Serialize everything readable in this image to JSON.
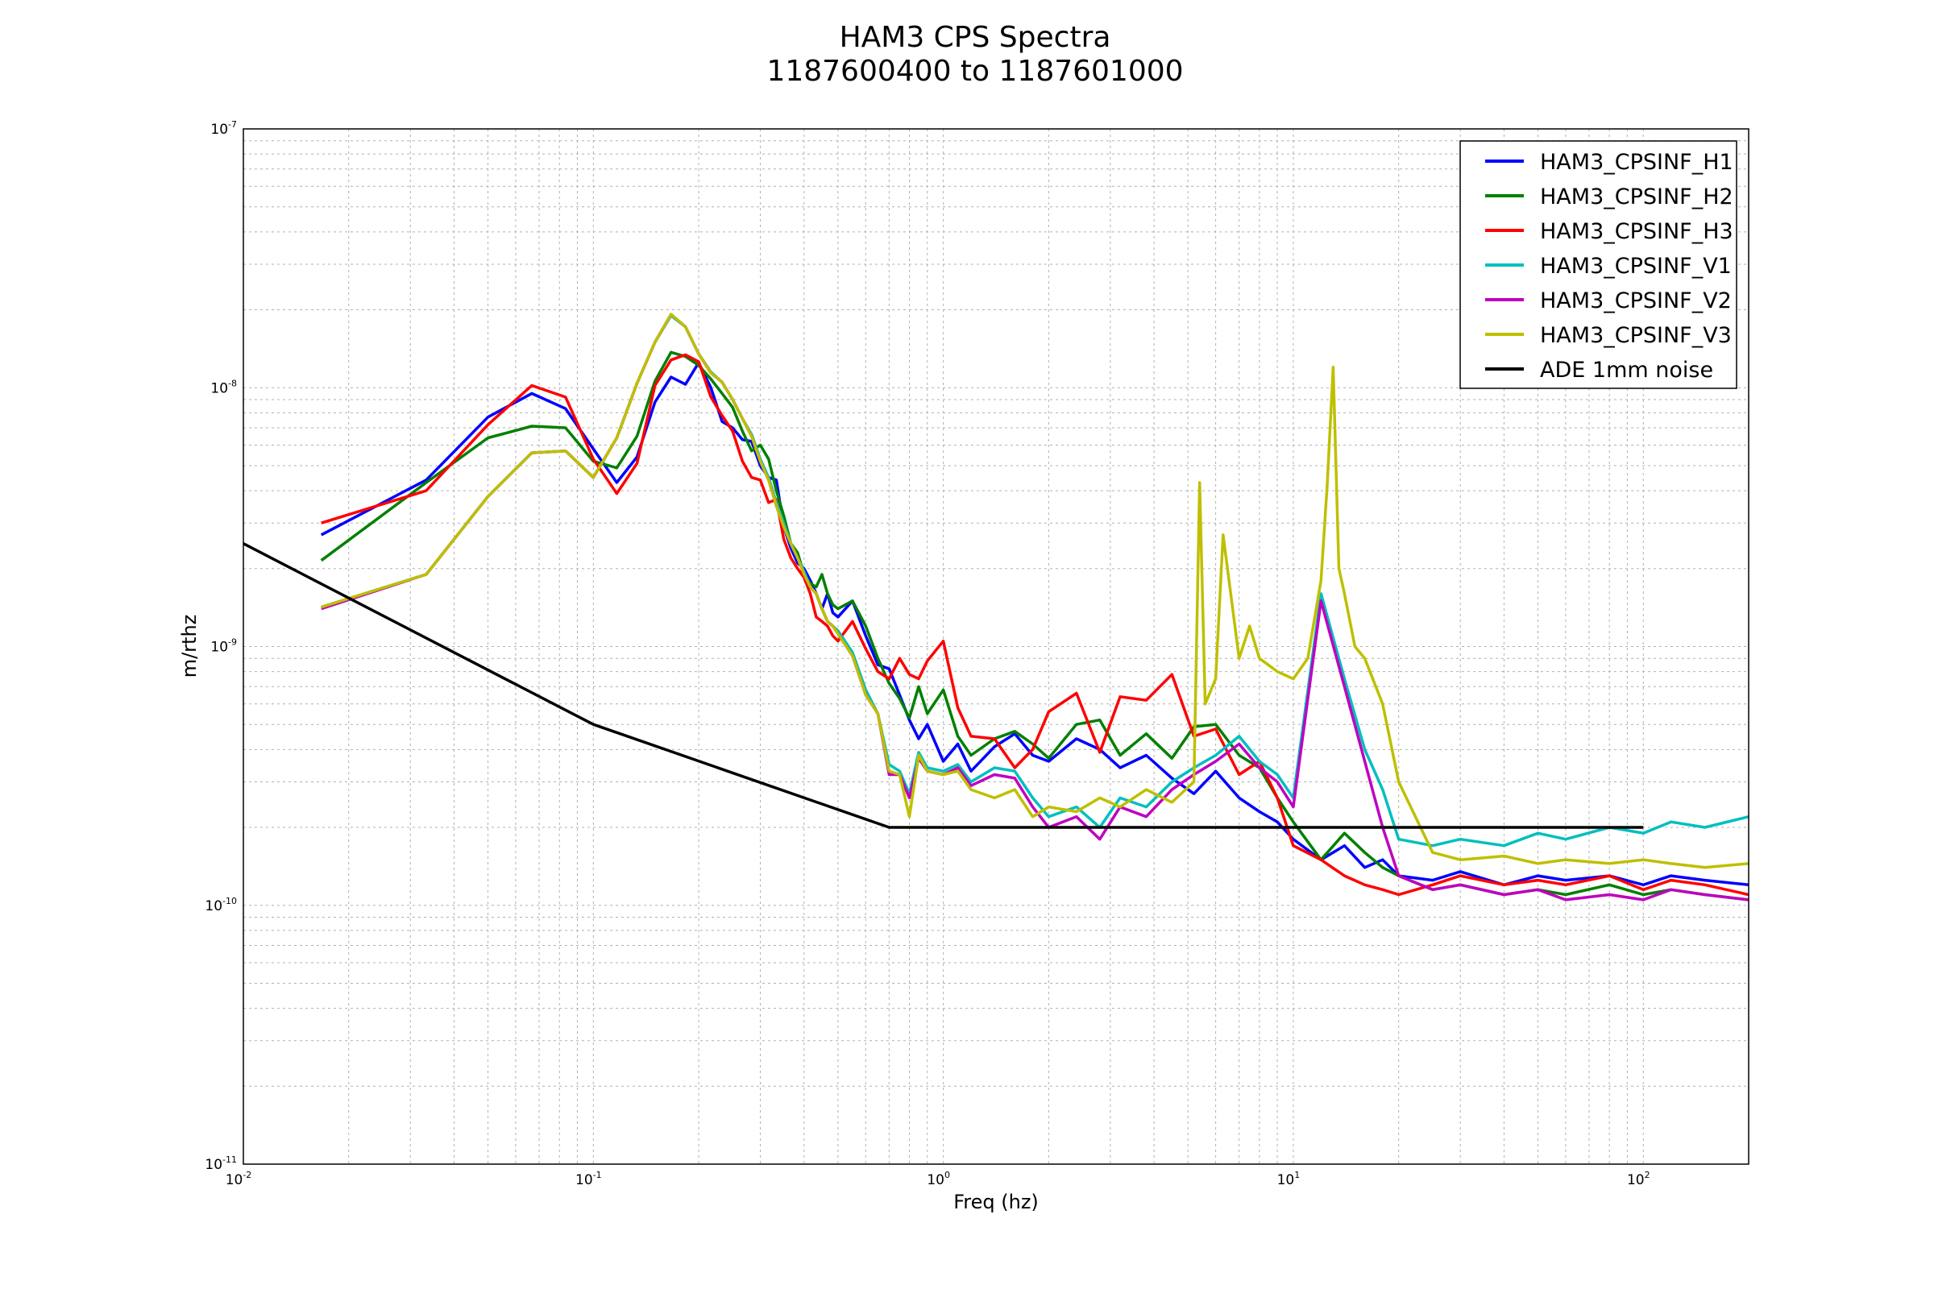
{
  "chart_data": {
    "type": "line",
    "title": "HAM3 CPS Spectra",
    "subtitle": "1187600400 to 1187601000",
    "xlabel": "Freq (hz)",
    "ylabel": "m/rthz",
    "xscale": "log",
    "yscale": "log",
    "xlim": [
      0.01,
      200
    ],
    "ylim": [
      1e-11,
      1e-07
    ],
    "grid": true,
    "legend_position": "top-right",
    "x_ticks": [
      {
        "value": 0.01,
        "base": "10",
        "exp": "-2"
      },
      {
        "value": 0.1,
        "base": "10",
        "exp": "-1"
      },
      {
        "value": 1,
        "base": "10",
        "exp": "0"
      },
      {
        "value": 10,
        "base": "10",
        "exp": "1"
      },
      {
        "value": 100,
        "base": "10",
        "exp": "2"
      }
    ],
    "y_ticks": [
      {
        "value": 1e-11,
        "base": "10",
        "exp": "-11"
      },
      {
        "value": 1e-10,
        "base": "10",
        "exp": "-10"
      },
      {
        "value": 1e-09,
        "base": "10",
        "exp": "-9"
      },
      {
        "value": 1e-08,
        "base": "10",
        "exp": "-8"
      },
      {
        "value": 1e-07,
        "base": "10",
        "exp": "-7"
      }
    ],
    "series": [
      {
        "name": "HAM3_CPSINF_H1",
        "color": "#0000ff",
        "x": [
          0.0167,
          0.0333,
          0.05,
          0.0667,
          0.0833,
          0.1,
          0.1167,
          0.1333,
          0.15,
          0.1667,
          0.1833,
          0.2,
          0.2167,
          0.2333,
          0.25,
          0.2667,
          0.2833,
          0.3,
          0.3167,
          0.3333,
          0.35,
          0.3667,
          0.3833,
          0.4,
          0.4167,
          0.4333,
          0.45,
          0.4667,
          0.4833,
          0.5,
          0.55,
          0.6,
          0.65,
          0.7,
          0.75,
          0.8,
          0.85,
          0.9,
          1.0,
          1.1,
          1.2,
          1.4,
          1.6,
          1.8,
          2.0,
          2.4,
          2.8,
          3.2,
          3.8,
          4.5,
          5.2,
          6.0,
          7.0,
          8.0,
          9.0,
          10,
          12,
          14,
          16,
          18,
          20,
          25,
          30,
          40,
          50,
          60,
          80,
          100,
          120,
          150,
          200
        ],
        "y": [
          2.7e-09,
          4.4e-09,
          7.7e-09,
          9.5e-09,
          8.3e-09,
          5.8e-09,
          4.3e-09,
          5.4e-09,
          8.8e-09,
          1.1e-08,
          1.03e-08,
          1.25e-08,
          1e-08,
          7.4e-09,
          7e-09,
          6.3e-09,
          6.2e-09,
          5e-09,
          4.5e-09,
          4.4e-09,
          2.9e-09,
          2.4e-09,
          2.1e-09,
          2e-09,
          1.8e-09,
          1.6e-09,
          1.4e-09,
          1.6e-09,
          1.35e-09,
          1.3e-09,
          1.5e-09,
          1.1e-09,
          8.5e-10,
          8.2e-10,
          6.5e-10,
          5.2e-10,
          4.4e-10,
          5e-10,
          3.6e-10,
          4.2e-10,
          3.3e-10,
          4.1e-10,
          4.6e-10,
          3.8e-10,
          3.6e-10,
          4.4e-10,
          4e-10,
          3.4e-10,
          3.8e-10,
          3.1e-10,
          2.7e-10,
          3.3e-10,
          2.6e-10,
          2.3e-10,
          2.1e-10,
          1.8e-10,
          1.5e-10,
          1.7e-10,
          1.4e-10,
          1.5e-10,
          1.3e-10,
          1.25e-10,
          1.35e-10,
          1.2e-10,
          1.3e-10,
          1.25e-10,
          1.3e-10,
          1.2e-10,
          1.3e-10,
          1.25e-10,
          1.2e-10
        ]
      },
      {
        "name": "HAM3_CPSINF_H2",
        "color": "#008000",
        "x": [
          0.0167,
          0.0333,
          0.05,
          0.0667,
          0.0833,
          0.1,
          0.1167,
          0.1333,
          0.15,
          0.1667,
          0.1833,
          0.2,
          0.2167,
          0.2333,
          0.25,
          0.2667,
          0.2833,
          0.3,
          0.3167,
          0.3333,
          0.35,
          0.3667,
          0.3833,
          0.4,
          0.4167,
          0.4333,
          0.45,
          0.4667,
          0.4833,
          0.5,
          0.55,
          0.6,
          0.65,
          0.7,
          0.75,
          0.8,
          0.85,
          0.9,
          1.0,
          1.1,
          1.2,
          1.4,
          1.6,
          1.8,
          2.0,
          2.4,
          2.8,
          3.2,
          3.8,
          4.5,
          5.2,
          6.0,
          7.0,
          8.0,
          9.0,
          10,
          12,
          14,
          16,
          18,
          20,
          25,
          30,
          40,
          50,
          60,
          80,
          100,
          120,
          150,
          200
        ],
        "y": [
          2.15e-09,
          4.3e-09,
          6.4e-09,
          7.1e-09,
          7e-09,
          5.2e-09,
          4.9e-09,
          6.5e-09,
          1.06e-08,
          1.37e-08,
          1.32e-08,
          1.22e-08,
          1.08e-08,
          9.5e-09,
          8.4e-09,
          6.8e-09,
          5.7e-09,
          6e-09,
          5.3e-09,
          4e-09,
          3.2e-09,
          2.5e-09,
          2.3e-09,
          1.9e-09,
          1.75e-09,
          1.7e-09,
          1.9e-09,
          1.6e-09,
          1.45e-09,
          1.4e-09,
          1.5e-09,
          1.2e-09,
          9e-10,
          7.2e-10,
          6.3e-10,
          5.3e-10,
          7e-10,
          5.5e-10,
          6.8e-10,
          4.5e-10,
          3.8e-10,
          4.4e-10,
          4.7e-10,
          4.2e-10,
          3.7e-10,
          5e-10,
          5.2e-10,
          3.8e-10,
          4.6e-10,
          3.7e-10,
          4.9e-10,
          5e-10,
          3.8e-10,
          3.4e-10,
          2.6e-10,
          2.1e-10,
          1.5e-10,
          1.9e-10,
          1.6e-10,
          1.4e-10,
          1.3e-10,
          1.15e-10,
          1.2e-10,
          1.1e-10,
          1.15e-10,
          1.1e-10,
          1.2e-10,
          1.1e-10,
          1.15e-10,
          1.1e-10,
          1.05e-10
        ]
      },
      {
        "name": "HAM3_CPSINF_H3",
        "color": "#ff0000",
        "x": [
          0.0167,
          0.0333,
          0.05,
          0.0667,
          0.0833,
          0.1,
          0.1167,
          0.1333,
          0.15,
          0.1667,
          0.1833,
          0.2,
          0.2167,
          0.2333,
          0.25,
          0.2667,
          0.2833,
          0.3,
          0.3167,
          0.3333,
          0.35,
          0.3667,
          0.3833,
          0.4,
          0.4167,
          0.4333,
          0.45,
          0.4667,
          0.4833,
          0.5,
          0.55,
          0.6,
          0.65,
          0.7,
          0.75,
          0.8,
          0.85,
          0.9,
          1.0,
          1.1,
          1.2,
          1.4,
          1.6,
          1.8,
          2.0,
          2.4,
          2.8,
          3.2,
          3.8,
          4.5,
          5.2,
          6.0,
          7.0,
          8.0,
          9.0,
          10,
          12,
          14,
          16,
          18,
          20,
          25,
          30,
          40,
          50,
          60,
          80,
          100,
          120,
          150,
          200
        ],
        "y": [
          3e-09,
          4e-09,
          7.2e-09,
          1.02e-08,
          9.2e-09,
          5.3e-09,
          3.9e-09,
          5.1e-09,
          1.02e-08,
          1.28e-08,
          1.34e-08,
          1.26e-08,
          9.2e-09,
          7.8e-09,
          6.8e-09,
          5.2e-09,
          4.5e-09,
          4.4e-09,
          3.6e-09,
          3.7e-09,
          2.6e-09,
          2.2e-09,
          2e-09,
          1.85e-09,
          1.6e-09,
          1.3e-09,
          1.25e-09,
          1.2e-09,
          1.1e-09,
          1.05e-09,
          1.25e-09,
          9.8e-10,
          8e-10,
          7.5e-10,
          9e-10,
          7.8e-10,
          7.5e-10,
          8.8e-10,
          1.05e-09,
          5.8e-10,
          4.5e-10,
          4.4e-10,
          3.4e-10,
          4e-10,
          5.6e-10,
          6.6e-10,
          3.9e-10,
          6.4e-10,
          6.2e-10,
          7.8e-10,
          4.5e-10,
          4.8e-10,
          3.2e-10,
          3.6e-10,
          2.6e-10,
          1.7e-10,
          1.5e-10,
          1.3e-10,
          1.2e-10,
          1.15e-10,
          1.1e-10,
          1.2e-10,
          1.3e-10,
          1.2e-10,
          1.25e-10,
          1.2e-10,
          1.3e-10,
          1.15e-10,
          1.25e-10,
          1.2e-10,
          1.1e-10
        ]
      },
      {
        "name": "HAM3_CPSINF_V1",
        "color": "#00bfbf",
        "x": [
          0.0167,
          0.0333,
          0.05,
          0.0667,
          0.0833,
          0.1,
          0.1167,
          0.1333,
          0.15,
          0.1667,
          0.1833,
          0.2,
          0.2167,
          0.2333,
          0.25,
          0.2667,
          0.2833,
          0.3,
          0.3167,
          0.3333,
          0.35,
          0.3667,
          0.3833,
          0.4,
          0.4167,
          0.4333,
          0.45,
          0.4667,
          0.4833,
          0.5,
          0.55,
          0.6,
          0.65,
          0.7,
          0.75,
          0.8,
          0.85,
          0.9,
          1.0,
          1.1,
          1.2,
          1.4,
          1.6,
          1.8,
          2.0,
          2.4,
          2.8,
          3.2,
          3.8,
          4.5,
          5.2,
          6.0,
          7.0,
          8.0,
          9.0,
          10,
          12,
          14,
          16,
          18,
          20,
          25,
          30,
          40,
          50,
          60,
          80,
          100,
          120,
          150,
          200
        ],
        "y": [
          1.42e-09,
          1.9e-09,
          3.8e-09,
          5.6e-09,
          5.7e-09,
          4.5e-09,
          6.4e-09,
          1.04e-08,
          1.5e-08,
          1.9e-08,
          1.72e-08,
          1.35e-08,
          1.15e-08,
          1.05e-08,
          9e-09,
          7.6e-09,
          6.6e-09,
          5.3e-09,
          4.5e-09,
          3.6e-09,
          3e-09,
          2.5e-09,
          2.2e-09,
          1.95e-09,
          1.7e-09,
          1.6e-09,
          1.4e-09,
          1.25e-09,
          1.2e-09,
          1.15e-09,
          9.5e-10,
          6.8e-10,
          5.5e-10,
          3.5e-10,
          3.3e-10,
          2.7e-10,
          3.9e-10,
          3.4e-10,
          3.3e-10,
          3.5e-10,
          3e-10,
          3.4e-10,
          3.3e-10,
          2.6e-10,
          2.2e-10,
          2.4e-10,
          2e-10,
          2.6e-10,
          2.4e-10,
          3e-10,
          3.4e-10,
          3.8e-10,
          4.5e-10,
          3.6e-10,
          3.2e-10,
          2.6e-10,
          1.6e-09,
          7.5e-10,
          4e-10,
          2.8e-10,
          1.8e-10,
          1.7e-10,
          1.8e-10,
          1.7e-10,
          1.9e-10,
          1.8e-10,
          2e-10,
          1.9e-10,
          2.1e-10,
          2e-10,
          2.2e-10
        ]
      },
      {
        "name": "HAM3_CPSINF_V2",
        "color": "#bf00bf",
        "x": [
          0.0167,
          0.0333,
          0.05,
          0.0667,
          0.0833,
          0.1,
          0.1167,
          0.1333,
          0.15,
          0.1667,
          0.1833,
          0.2,
          0.2167,
          0.2333,
          0.25,
          0.2667,
          0.2833,
          0.3,
          0.3167,
          0.3333,
          0.35,
          0.3667,
          0.3833,
          0.4,
          0.4167,
          0.4333,
          0.45,
          0.4667,
          0.4833,
          0.5,
          0.55,
          0.6,
          0.65,
          0.7,
          0.75,
          0.8,
          0.85,
          0.9,
          1.0,
          1.1,
          1.2,
          1.4,
          1.6,
          1.8,
          2.0,
          2.4,
          2.8,
          3.2,
          3.8,
          4.5,
          5.2,
          6.0,
          7.0,
          8.0,
          9.0,
          10,
          12,
          14,
          16,
          18,
          20,
          25,
          30,
          40,
          50,
          60,
          80,
          100,
          120,
          150,
          200
        ],
        "y": [
          1.4e-09,
          1.9e-09,
          3.8e-09,
          5.6e-09,
          5.7e-09,
          4.5e-09,
          6.4e-09,
          1.04e-08,
          1.5e-08,
          1.92e-08,
          1.72e-08,
          1.35e-08,
          1.14e-08,
          1.05e-08,
          9e-09,
          7.6e-09,
          6.5e-09,
          5.2e-09,
          4.4e-09,
          3.5e-09,
          2.9e-09,
          2.5e-09,
          2.2e-09,
          1.9e-09,
          1.7e-09,
          1.6e-09,
          1.4e-09,
          1.25e-09,
          1.2e-09,
          1.12e-09,
          9.2e-10,
          6.5e-10,
          5.5e-10,
          3.2e-10,
          3.2e-10,
          2.6e-10,
          3.7e-10,
          3.3e-10,
          3.2e-10,
          3.4e-10,
          2.9e-10,
          3.2e-10,
          3.1e-10,
          2.4e-10,
          2e-10,
          2.2e-10,
          1.8e-10,
          2.4e-10,
          2.2e-10,
          2.8e-10,
          3.2e-10,
          3.6e-10,
          4.2e-10,
          3.4e-10,
          3e-10,
          2.4e-10,
          1.5e-09,
          7e-10,
          3.6e-10,
          2e-10,
          1.3e-10,
          1.15e-10,
          1.2e-10,
          1.1e-10,
          1.15e-10,
          1.05e-10,
          1.1e-10,
          1.05e-10,
          1.15e-10,
          1.1e-10,
          1.05e-10
        ]
      },
      {
        "name": "HAM3_CPSINF_V3",
        "color": "#bfbf00",
        "x": [
          0.0167,
          0.0333,
          0.05,
          0.0667,
          0.0833,
          0.1,
          0.1167,
          0.1333,
          0.15,
          0.1667,
          0.1833,
          0.2,
          0.2167,
          0.2333,
          0.25,
          0.2667,
          0.2833,
          0.3,
          0.3167,
          0.3333,
          0.35,
          0.3667,
          0.3833,
          0.4,
          0.4167,
          0.4333,
          0.45,
          0.4667,
          0.4833,
          0.5,
          0.55,
          0.6,
          0.65,
          0.7,
          0.75,
          0.8,
          0.85,
          0.9,
          1.0,
          1.1,
          1.2,
          1.4,
          1.6,
          1.8,
          2.0,
          2.4,
          2.8,
          3.2,
          3.8,
          4.5,
          5.2,
          5.4,
          5.6,
          6.0,
          6.3,
          7.0,
          7.5,
          8.0,
          9.0,
          10,
          11,
          12,
          12.5,
          13,
          13.5,
          14,
          15,
          16,
          18,
          20,
          25,
          30,
          40,
          50,
          60,
          80,
          100,
          120,
          150,
          200
        ],
        "y": [
          1.42e-09,
          1.9e-09,
          3.8e-09,
          5.6e-09,
          5.7e-09,
          4.5e-09,
          6.4e-09,
          1.04e-08,
          1.5e-08,
          1.92e-08,
          1.72e-08,
          1.35e-08,
          1.14e-08,
          1.05e-08,
          9e-09,
          7.6e-09,
          6.5e-09,
          5.2e-09,
          4.4e-09,
          3.5e-09,
          2.9e-09,
          2.5e-09,
          2.2e-09,
          1.9e-09,
          1.7e-09,
          1.6e-09,
          1.4e-09,
          1.25e-09,
          1.2e-09,
          1.12e-09,
          9.2e-10,
          6.5e-10,
          5.5e-10,
          3.3e-10,
          3.2e-10,
          2.2e-10,
          3.8e-10,
          3.3e-10,
          3.2e-10,
          3.3e-10,
          2.8e-10,
          2.6e-10,
          2.8e-10,
          2.2e-10,
          2.4e-10,
          2.3e-10,
          2.6e-10,
          2.4e-10,
          2.8e-10,
          2.5e-10,
          3e-10,
          4.3e-09,
          6e-10,
          7.5e-10,
          2.7e-09,
          9e-10,
          1.2e-09,
          9e-10,
          8e-10,
          7.5e-10,
          9e-10,
          1.8e-09,
          4.2e-09,
          1.2e-08,
          2e-09,
          1.6e-09,
          1e-09,
          9e-10,
          6e-10,
          3e-10,
          1.6e-10,
          1.5e-10,
          1.55e-10,
          1.45e-10,
          1.5e-10,
          1.45e-10,
          1.5e-10,
          1.45e-10,
          1.4e-10,
          1.45e-10
        ]
      },
      {
        "name": "ADE 1mm noise",
        "color": "#000000",
        "x": [
          0.01,
          0.1,
          0.7,
          100
        ],
        "y": [
          2.5e-09,
          5e-10,
          2e-10,
          2e-10
        ]
      }
    ]
  }
}
